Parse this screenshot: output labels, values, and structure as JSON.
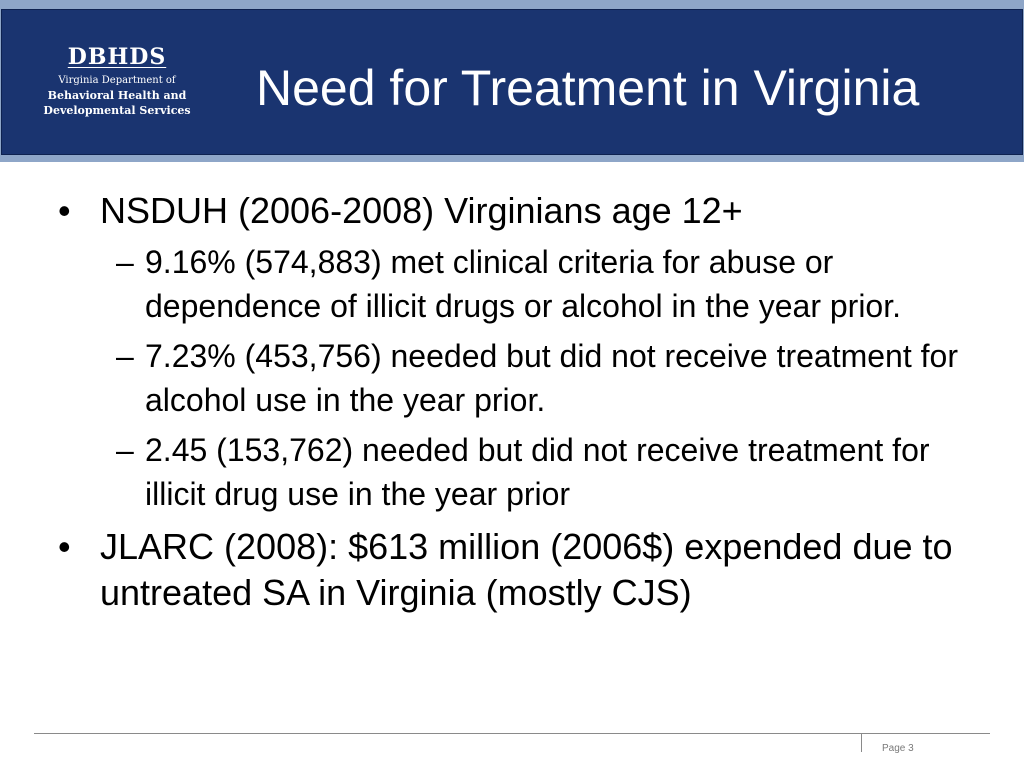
{
  "logo": {
    "abbr": "DBHDS",
    "line1": "Virginia  Department  of",
    "line2": "Behavioral Health  and",
    "line3": "Developmental Services"
  },
  "slide": {
    "title": "Need for Treatment in Virginia",
    "bullets": [
      {
        "marker": "•",
        "text": "NSDUH (2006-2008) Virginians age 12+",
        "subs": [
          {
            "marker": "–",
            "text": "9.16%  (574,883) met clinical criteria for abuse or dependence of illicit drugs or alcohol in the year prior."
          },
          {
            "marker": "–",
            "text": "7.23% (453,756) needed but did not receive treatment for alcohol use in the year prior."
          },
          {
            "marker": "–",
            "text": "2.45 (153,762) needed but did not receive treatment for illicit drug use in the year prior"
          }
        ]
      },
      {
        "marker": "•",
        "text": "JLARC (2008): $613 million (2006$) expended due to untreated SA in Virginia (mostly CJS)"
      }
    ]
  },
  "footer": {
    "page": "Page 3"
  },
  "colors": {
    "header": "#1a3470",
    "header_band": "#8ea6c8",
    "text": "#000000"
  }
}
